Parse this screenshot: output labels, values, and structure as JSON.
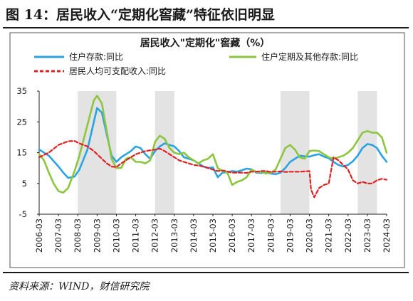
{
  "figure_title": "图 14：居民收入“定期化窖藏”特征依旧明显",
  "source": "资料来源：WIND，财信研究院",
  "chart_data": {
    "type": "line",
    "title": "居民收入\"定期化\"窖藏（%）",
    "xlabel": "",
    "ylabel": "",
    "ylim": [
      -5,
      35
    ],
    "yticks": [
      -5,
      5,
      15,
      25,
      35
    ],
    "xlim": [
      "2006-03",
      "2024-03"
    ],
    "xticks": [
      "2006-03",
      "2007-03",
      "2008-03",
      "2009-03",
      "2010-03",
      "2011-03",
      "2012-03",
      "2013-03",
      "2014-03",
      "2015-03",
      "2016-03",
      "2017-03",
      "2018-03",
      "2019-03",
      "2020-03",
      "2021-03",
      "2022-03",
      "2023-03",
      "2024-03"
    ],
    "shaded_periods": [
      [
        "2008-03",
        "2010-03"
      ],
      [
        "2012-03",
        "2013-03"
      ],
      [
        "2018-09",
        "2020-03"
      ],
      [
        "2022-09",
        "2023-09"
      ]
    ],
    "shade_color": "#e3e3e3",
    "grid": false,
    "legend_position": "top",
    "series": [
      {
        "name": "住户存款:同比",
        "color": "#2aa3e0",
        "style": "solid",
        "points": [
          [
            "2006-03",
            16
          ],
          [
            "2006-09",
            14
          ],
          [
            "2007-03",
            10.5
          ],
          [
            "2007-06",
            8.5
          ],
          [
            "2007-09",
            6.8
          ],
          [
            "2008-01",
            7.2
          ],
          [
            "2008-04",
            9.5
          ],
          [
            "2008-09",
            16
          ],
          [
            "2009-01",
            25
          ],
          [
            "2009-03",
            29.5
          ],
          [
            "2009-06",
            28
          ],
          [
            "2009-09",
            21
          ],
          [
            "2009-12",
            14
          ],
          [
            "2010-03",
            12
          ],
          [
            "2010-06",
            13.5
          ],
          [
            "2010-09",
            14.5
          ],
          [
            "2010-12",
            15.5
          ],
          [
            "2011-03",
            17
          ],
          [
            "2011-06",
            16.5
          ],
          [
            "2011-09",
            14.5
          ],
          [
            "2011-12",
            13
          ],
          [
            "2012-03",
            15.5
          ],
          [
            "2012-06",
            17
          ],
          [
            "2012-09",
            18
          ],
          [
            "2012-12",
            17.5
          ],
          [
            "2013-03",
            17
          ],
          [
            "2013-06",
            15.5
          ],
          [
            "2013-09",
            13.5
          ],
          [
            "2013-12",
            13
          ],
          [
            "2014-03",
            12.5
          ],
          [
            "2014-06",
            11.5
          ],
          [
            "2014-09",
            10.5
          ],
          [
            "2014-12",
            10
          ],
          [
            "2015-03",
            10.2
          ],
          [
            "2015-06",
            7
          ],
          [
            "2015-09",
            8.5
          ],
          [
            "2015-12",
            8.6
          ],
          [
            "2016-03",
            9
          ],
          [
            "2016-06",
            8.8
          ],
          [
            "2016-09",
            9.3
          ],
          [
            "2016-12",
            9.8
          ],
          [
            "2017-03",
            9.6
          ],
          [
            "2017-06",
            8.5
          ],
          [
            "2017-09",
            8.4
          ],
          [
            "2017-12",
            8.5
          ],
          [
            "2018-03",
            8.2
          ],
          [
            "2018-06",
            8
          ],
          [
            "2018-09",
            8.5
          ],
          [
            "2018-12",
            10
          ],
          [
            "2019-03",
            12
          ],
          [
            "2019-06",
            13
          ],
          [
            "2019-09",
            14
          ],
          [
            "2019-12",
            13.8
          ],
          [
            "2020-03",
            13.7
          ],
          [
            "2020-06",
            14.2
          ],
          [
            "2020-09",
            14.5
          ],
          [
            "2020-12",
            13.7
          ],
          [
            "2021-03",
            13.2
          ],
          [
            "2021-06",
            12
          ],
          [
            "2021-09",
            11
          ],
          [
            "2021-12",
            10.5
          ],
          [
            "2022-03",
            11
          ],
          [
            "2022-06",
            12.2
          ],
          [
            "2022-09",
            14
          ],
          [
            "2022-12",
            16.5
          ],
          [
            "2023-03",
            17.8
          ],
          [
            "2023-06",
            17.5
          ],
          [
            "2023-09",
            16.5
          ],
          [
            "2023-12",
            14
          ],
          [
            "2024-03",
            12
          ]
        ]
      },
      {
        "name": "住户定期及其他存款:同比",
        "color": "#8cc63f",
        "style": "solid",
        "points": [
          [
            "2006-03",
            14.5
          ],
          [
            "2006-06",
            12.5
          ],
          [
            "2006-09",
            8.5
          ],
          [
            "2006-12",
            5
          ],
          [
            "2007-03",
            2.5
          ],
          [
            "2007-06",
            2
          ],
          [
            "2007-09",
            3.5
          ],
          [
            "2008-01",
            9
          ],
          [
            "2008-04",
            14
          ],
          [
            "2008-09",
            24
          ],
          [
            "2009-01",
            32
          ],
          [
            "2009-03",
            33.5
          ],
          [
            "2009-06",
            31
          ],
          [
            "2009-09",
            22
          ],
          [
            "2009-12",
            13
          ],
          [
            "2010-03",
            10
          ],
          [
            "2010-06",
            10
          ],
          [
            "2010-09",
            13
          ],
          [
            "2010-12",
            13.5
          ],
          [
            "2011-03",
            12
          ],
          [
            "2011-06",
            12
          ],
          [
            "2011-09",
            11.5
          ],
          [
            "2011-12",
            12.5
          ],
          [
            "2012-03",
            18.5
          ],
          [
            "2012-06",
            20.5
          ],
          [
            "2012-09",
            19.5
          ],
          [
            "2012-12",
            16.5
          ],
          [
            "2013-03",
            15
          ],
          [
            "2013-06",
            14.5
          ],
          [
            "2013-09",
            15
          ],
          [
            "2013-12",
            13.5
          ],
          [
            "2014-03",
            12.5
          ],
          [
            "2014-06",
            11.5
          ],
          [
            "2014-09",
            12.5
          ],
          [
            "2014-12",
            13
          ],
          [
            "2015-03",
            14.5
          ],
          [
            "2015-06",
            10
          ],
          [
            "2015-09",
            9
          ],
          [
            "2015-12",
            8.5
          ],
          [
            "2016-03",
            4.5
          ],
          [
            "2016-06",
            5.5
          ],
          [
            "2016-09",
            6
          ],
          [
            "2016-12",
            7
          ],
          [
            "2017-03",
            9.5
          ],
          [
            "2017-06",
            8.7
          ],
          [
            "2017-09",
            8.8
          ],
          [
            "2017-12",
            8.2
          ],
          [
            "2018-03",
            8.5
          ],
          [
            "2018-06",
            9.5
          ],
          [
            "2018-09",
            13
          ],
          [
            "2018-12",
            16.5
          ],
          [
            "2019-03",
            17.5
          ],
          [
            "2019-06",
            16
          ],
          [
            "2019-09",
            13.5
          ],
          [
            "2019-12",
            13
          ],
          [
            "2020-03",
            15.5
          ],
          [
            "2020-06",
            15.7
          ],
          [
            "2020-09",
            15.5
          ],
          [
            "2020-12",
            14.5
          ],
          [
            "2021-03",
            13.5
          ],
          [
            "2021-06",
            13
          ],
          [
            "2021-09",
            13.5
          ],
          [
            "2021-12",
            14
          ],
          [
            "2022-03",
            15
          ],
          [
            "2022-06",
            16.5
          ],
          [
            "2022-09",
            19
          ],
          [
            "2022-12",
            21.5
          ],
          [
            "2023-03",
            22
          ],
          [
            "2023-06",
            21.5
          ],
          [
            "2023-09",
            21.5
          ],
          [
            "2023-12",
            20
          ],
          [
            "2024-03",
            15
          ]
        ]
      },
      {
        "name": "居民人均可支配收入:同比",
        "color": "#e02020",
        "style": "dashed",
        "points": [
          [
            "2006-03",
            13.5
          ],
          [
            "2006-09",
            15
          ],
          [
            "2007-03",
            17.5
          ],
          [
            "2007-09",
            18.7
          ],
          [
            "2008-01",
            18.8
          ],
          [
            "2008-04",
            18
          ],
          [
            "2008-09",
            17
          ],
          [
            "2009-01",
            15.5
          ],
          [
            "2009-03",
            14.5
          ],
          [
            "2009-06",
            13
          ],
          [
            "2009-09",
            11.5
          ],
          [
            "2009-12",
            10.5
          ],
          [
            "2010-03",
            10.3
          ],
          [
            "2010-06",
            11.5
          ],
          [
            "2010-09",
            12.5
          ],
          [
            "2010-12",
            13.5
          ],
          [
            "2011-03",
            14.5
          ],
          [
            "2011-09",
            15.5
          ],
          [
            "2012-03",
            16
          ],
          [
            "2012-06",
            16.3
          ],
          [
            "2012-09",
            15.5
          ],
          [
            "2012-12",
            14.5
          ],
          [
            "2013-03",
            13.5
          ],
          [
            "2013-06",
            12.5
          ],
          [
            "2013-09",
            12
          ],
          [
            "2013-12",
            11.5
          ],
          [
            "2014-03",
            11
          ],
          [
            "2014-06",
            10.8
          ],
          [
            "2014-09",
            10.5
          ],
          [
            "2014-12",
            10
          ],
          [
            "2015-03",
            9.5
          ],
          [
            "2015-06",
            9
          ],
          [
            "2015-09",
            9.2
          ],
          [
            "2015-12",
            8.9
          ],
          [
            "2016-03",
            8.5
          ],
          [
            "2016-06",
            8.5
          ],
          [
            "2016-09",
            8.5
          ],
          [
            "2016-12",
            8.4
          ],
          [
            "2017-03",
            8.8
          ],
          [
            "2017-06",
            8.8
          ],
          [
            "2017-09",
            9
          ],
          [
            "2017-12",
            9
          ],
          [
            "2018-03",
            8.7
          ],
          [
            "2018-06",
            8.8
          ],
          [
            "2018-09",
            8.9
          ],
          [
            "2018-12",
            8.7
          ],
          [
            "2019-03",
            8.8
          ],
          [
            "2019-06",
            8.8
          ],
          [
            "2019-09",
            8.8
          ],
          [
            "2019-12",
            8.9
          ],
          [
            "2020-03",
            9
          ],
          [
            "2020-04",
            3
          ],
          [
            "2020-06",
            0.5
          ],
          [
            "2020-09",
            3.5
          ],
          [
            "2020-12",
            4.5
          ],
          [
            "2021-03",
            5
          ],
          [
            "2021-06",
            13.5
          ],
          [
            "2021-09",
            12.5
          ],
          [
            "2021-12",
            11
          ],
          [
            "2022-03",
            9.5
          ],
          [
            "2022-06",
            6
          ],
          [
            "2022-09",
            5
          ],
          [
            "2022-12",
            5.5
          ],
          [
            "2023-03",
            5
          ],
          [
            "2023-06",
            5
          ],
          [
            "2023-09",
            6
          ],
          [
            "2023-12",
            6.5
          ],
          [
            "2024-03",
            6.2
          ]
        ]
      }
    ]
  }
}
